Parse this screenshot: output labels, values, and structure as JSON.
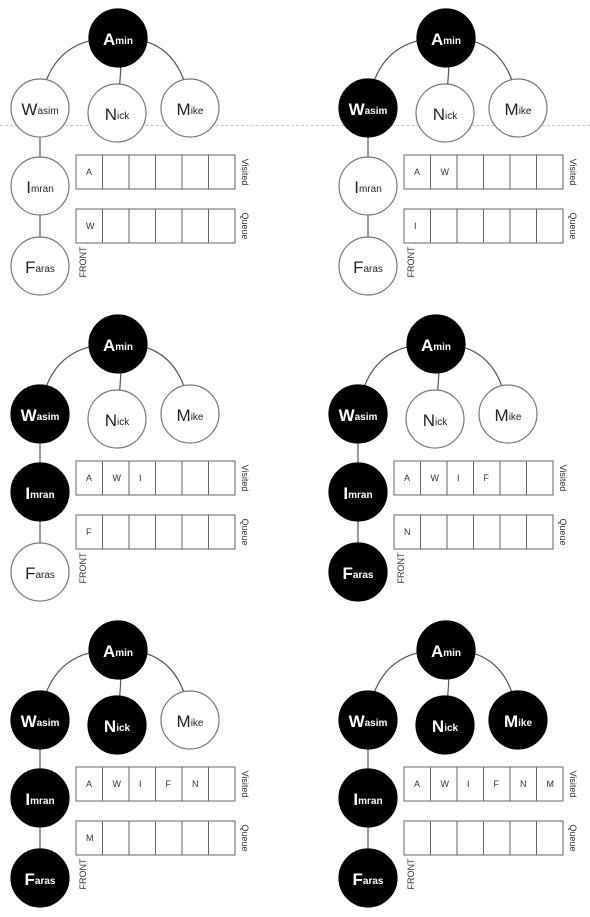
{
  "nodes": {
    "A": {
      "initial": "A",
      "rest": "min"
    },
    "W": {
      "initial": "W",
      "rest": "asim"
    },
    "N": {
      "initial": "N",
      "rest": "ick"
    },
    "M": {
      "initial": "M",
      "rest": "ike"
    },
    "I": {
      "initial": "I",
      "rest": "mran"
    },
    "F": {
      "initial": "F",
      "rest": "aras"
    }
  },
  "labels": {
    "visited": "Visited",
    "queue": "Queue",
    "front": "FRONT"
  },
  "steps": [
    {
      "visited_nodes": [
        "A"
      ],
      "visited": [
        "A",
        "",
        "",
        "",
        "",
        ""
      ],
      "queue": [
        "W",
        "",
        "",
        "",
        "",
        ""
      ]
    },
    {
      "visited_nodes": [
        "A",
        "W"
      ],
      "visited": [
        "A",
        "W",
        "",
        "",
        "",
        ""
      ],
      "queue": [
        "I",
        "",
        "",
        "",
        "",
        ""
      ]
    },
    {
      "visited_nodes": [
        "A",
        "W",
        "I"
      ],
      "visited": [
        "A",
        "W",
        "I",
        "",
        "",
        ""
      ],
      "queue": [
        "F",
        "",
        "",
        "",
        "",
        ""
      ]
    },
    {
      "visited_nodes": [
        "A",
        "W",
        "I",
        "F"
      ],
      "visited": [
        "A",
        "W",
        "I",
        "F",
        "",
        ""
      ],
      "queue": [
        "N",
        "",
        "",
        "",
        "",
        ""
      ]
    },
    {
      "visited_nodes": [
        "A",
        "W",
        "I",
        "F",
        "N"
      ],
      "visited": [
        "A",
        "W",
        "I",
        "F",
        "N",
        ""
      ],
      "queue": [
        "M",
        "",
        "",
        "",
        "",
        ""
      ]
    },
    {
      "visited_nodes": [
        "A",
        "W",
        "I",
        "F",
        "N",
        "M"
      ],
      "visited": [
        "A",
        "W",
        "I",
        "F",
        "N",
        "M"
      ],
      "queue": [
        "",
        "",
        "",
        "",
        "",
        ""
      ]
    }
  ],
  "colors": {
    "visited_fill": "#000000",
    "unvisited_fill": "#ffffff"
  }
}
